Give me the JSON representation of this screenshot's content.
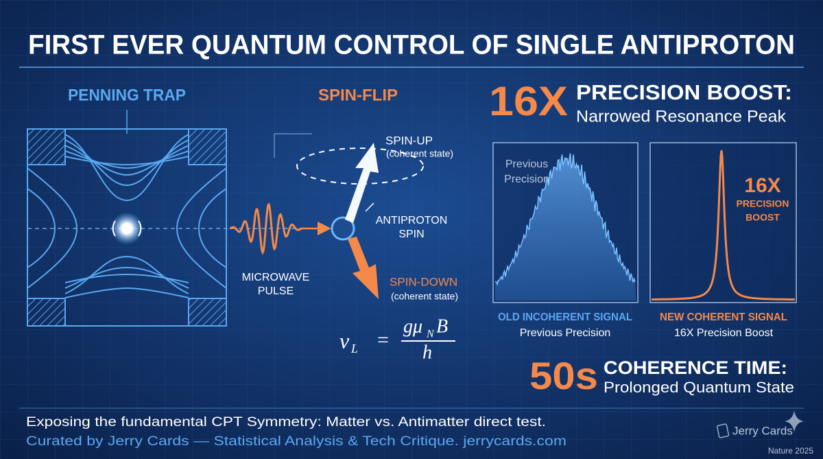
{
  "header": {
    "title": "FIRST EVER QUANTUM CONTROL OF SINGLE ANTIPROTON"
  },
  "trap": {
    "label": "PENNING TRAP"
  },
  "spin": {
    "label": "SPIN-FLIP",
    "up": {
      "label": "SPIN-UP",
      "note": "(coherent state)"
    },
    "particle": [
      "ANTIPROTON",
      "SPIN"
    ],
    "pulse": [
      "MICROWAVE",
      "PULSE"
    ],
    "down": {
      "label": "SPIN-DOWN",
      "note": "(coherent state)"
    },
    "formula": {
      "symbol": "ν",
      "symbol_sub": "L",
      "equals": "=",
      "numerator": "gμ",
      "numerator_sub": "N",
      "numerator_tail": "B",
      "denominator": "h"
    }
  },
  "precision": {
    "figure": "16X",
    "headline": "PRECISION BOOST:",
    "subline": "Narrowed Resonance Peak",
    "old_panel": {
      "inner_label": [
        "Previous",
        "Precision"
      ],
      "caption": "OLD INCOHERENT SIGNAL",
      "subcaption": "Previous Precision"
    },
    "new_panel": {
      "inner_label": [
        "16X",
        "PRECISION",
        "BOOST"
      ],
      "caption": "NEW COHERENT SIGNAL",
      "subcaption": "16X Precision Boost"
    }
  },
  "coherence": {
    "figure": "50s",
    "headline": "COHERENCE TIME:",
    "subline": "Prolonged Quantum State"
  },
  "footer": {
    "line1": "Exposing the fundamental CPT Symmetry: Matter vs. Antimatter direct test.",
    "line2": "Curated by Jerry Cards — Statistical Analysis & Tech Critique. jerrycards.com",
    "brand": "Jerry Cards",
    "source": "Nature 2025"
  }
}
